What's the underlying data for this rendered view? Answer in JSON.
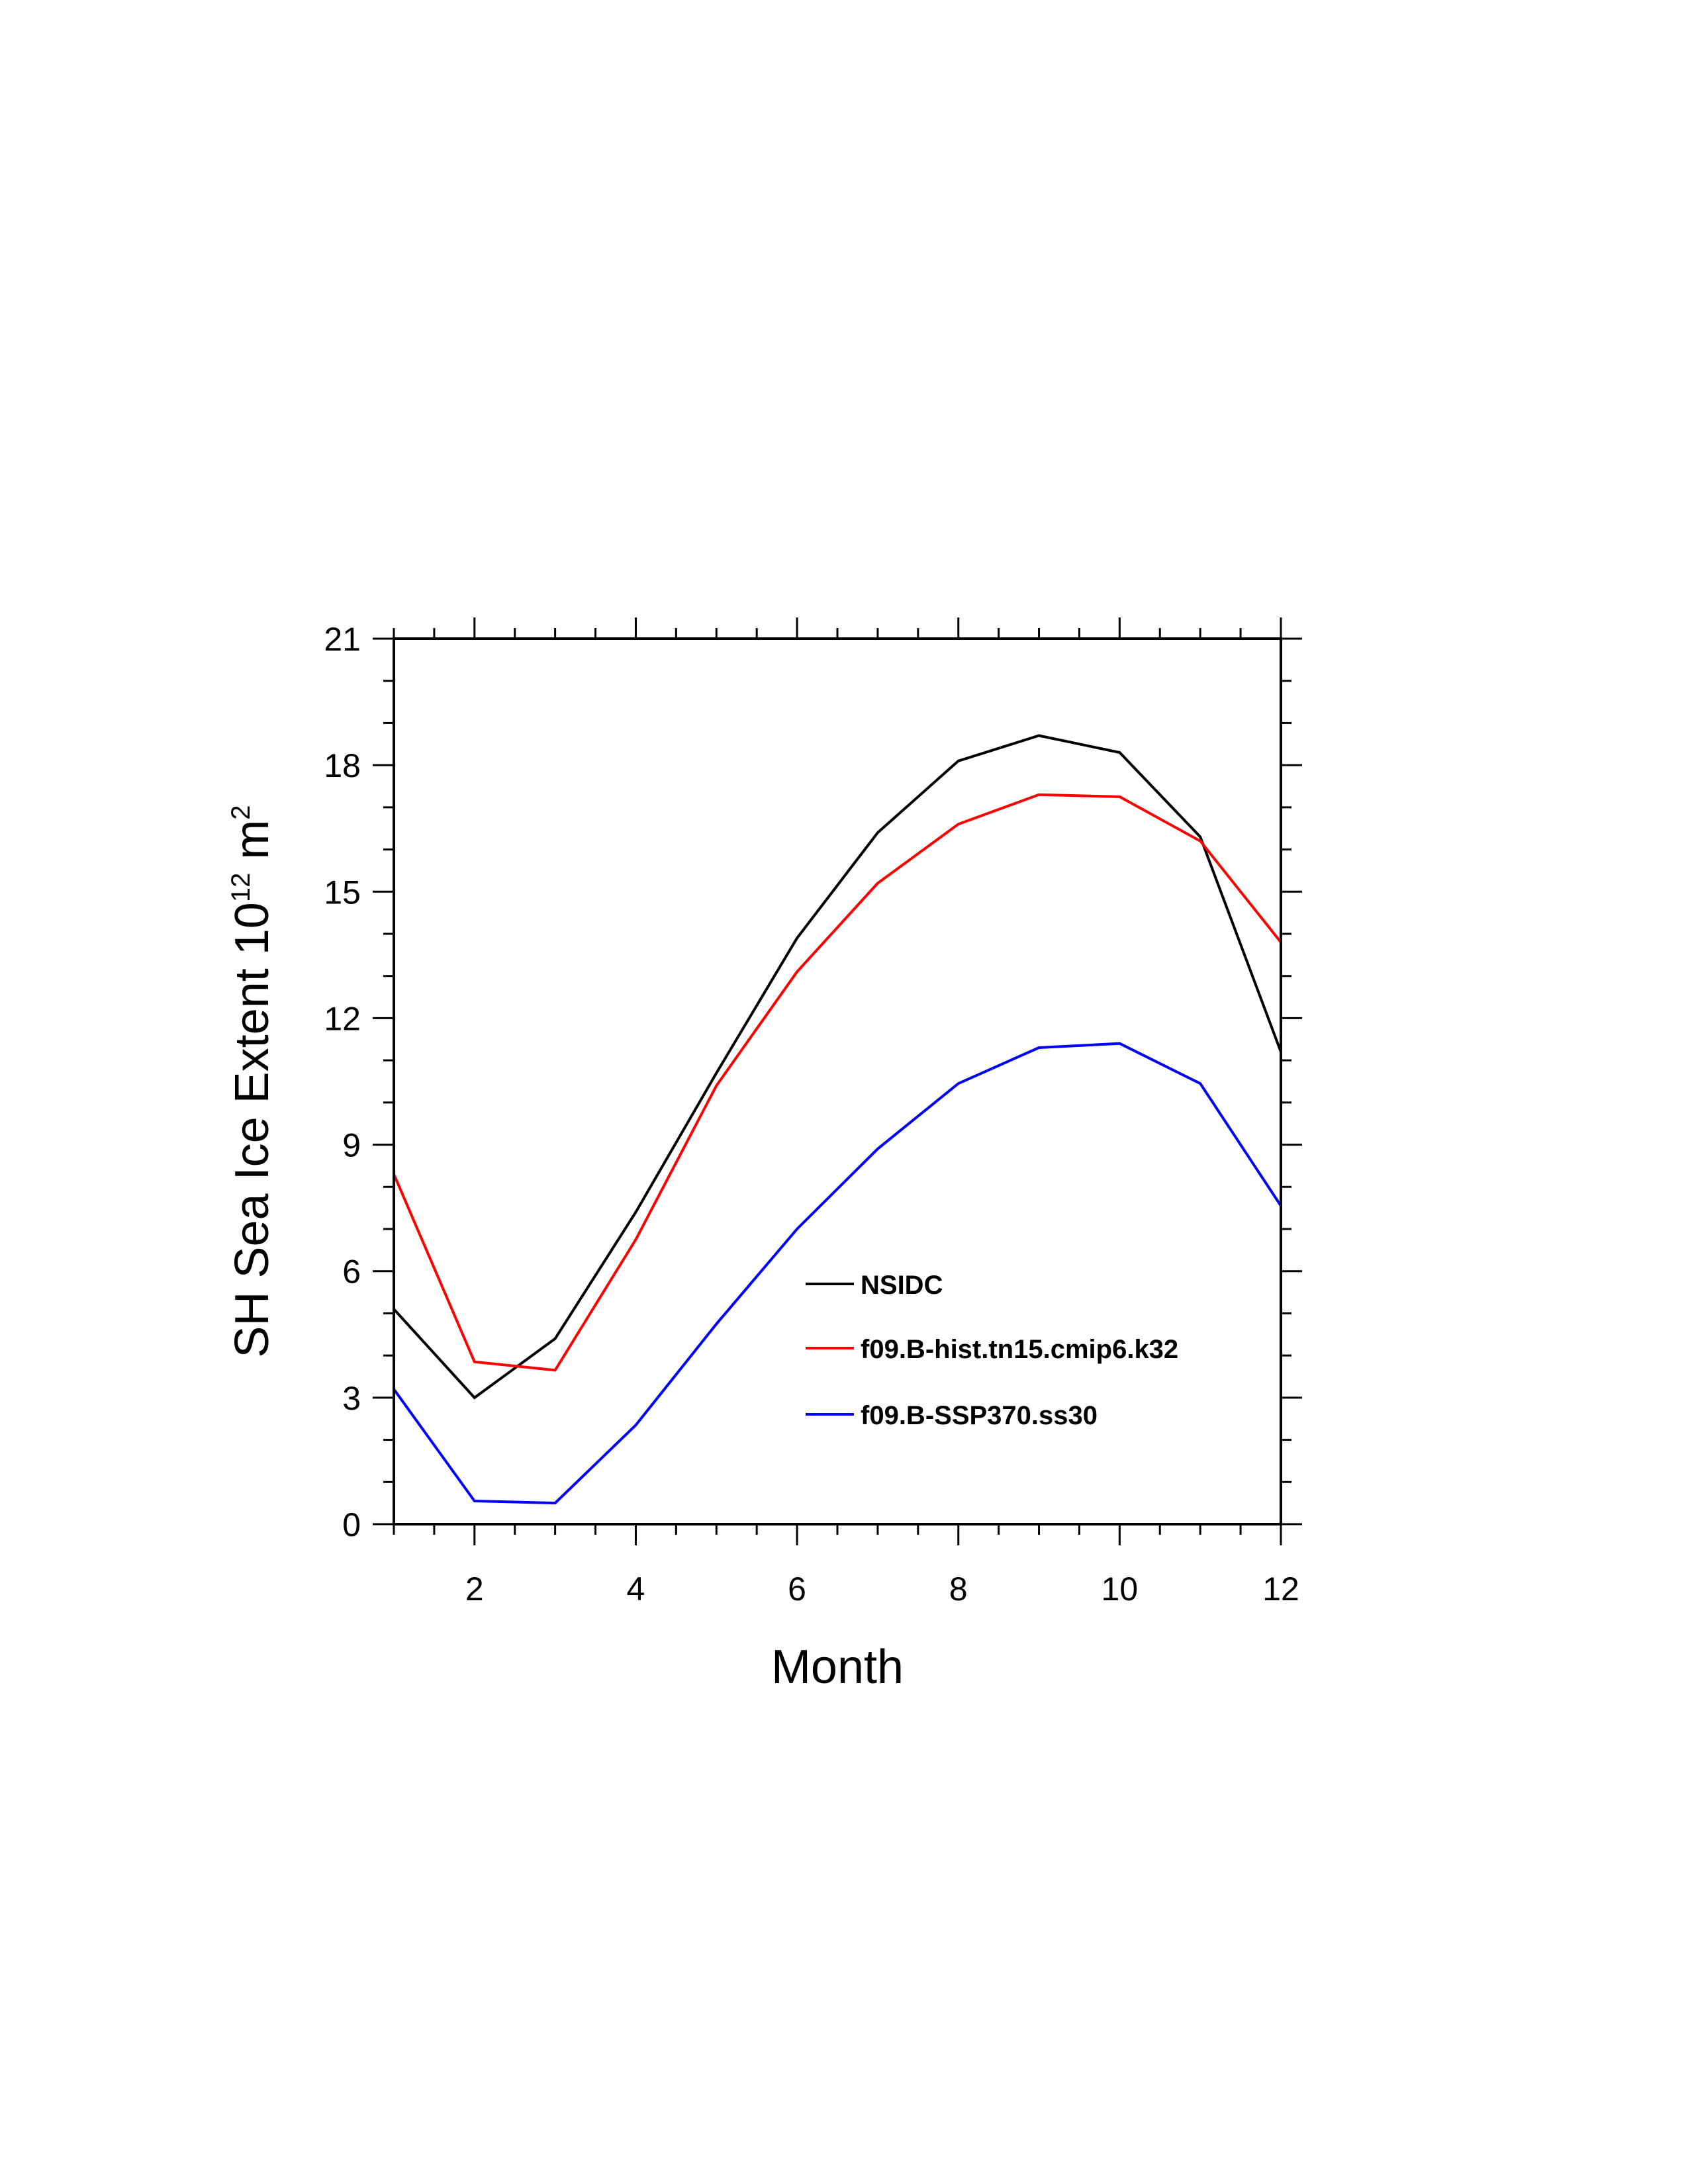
{
  "chart_data": {
    "type": "line",
    "title": "",
    "xlabel": "Month",
    "ylabel": "SH Sea Ice Extent 10",
    "ylabel_exponent": "12",
    "ylabel_unit": " m",
    "ylabel_unit_exponent": "2",
    "xlim": [
      1,
      12
    ],
    "ylim": [
      0,
      21
    ],
    "x_ticks": [
      2,
      4,
      6,
      8,
      10,
      12
    ],
    "y_ticks": [
      0,
      3,
      6,
      9,
      12,
      15,
      18,
      21
    ],
    "x_minor_step": 0.5,
    "y_minor_step": 1,
    "grid": false,
    "legend_position": "lower-right inside",
    "x": [
      1,
      2,
      3,
      4,
      5,
      6,
      7,
      8,
      9,
      10,
      11,
      12
    ],
    "series": [
      {
        "name": "NSIDC",
        "color": "#000000",
        "values": [
          5.1,
          3.0,
          4.4,
          7.4,
          10.7,
          13.9,
          16.4,
          18.1,
          18.7,
          18.3,
          16.3,
          11.2
        ]
      },
      {
        "name": "f09.B-hist.tn15.cmip6.k32",
        "color": "#ff0000",
        "values": [
          8.3,
          3.85,
          3.65,
          6.75,
          10.4,
          13.1,
          15.2,
          16.6,
          17.3,
          17.25,
          16.2,
          13.8
        ]
      },
      {
        "name": "f09.B-SSP370.ss30",
        "color": "#0000ff",
        "values": [
          3.2,
          0.55,
          0.5,
          2.35,
          4.75,
          7.0,
          8.9,
          10.45,
          11.3,
          11.4,
          10.45,
          7.55
        ]
      }
    ]
  }
}
